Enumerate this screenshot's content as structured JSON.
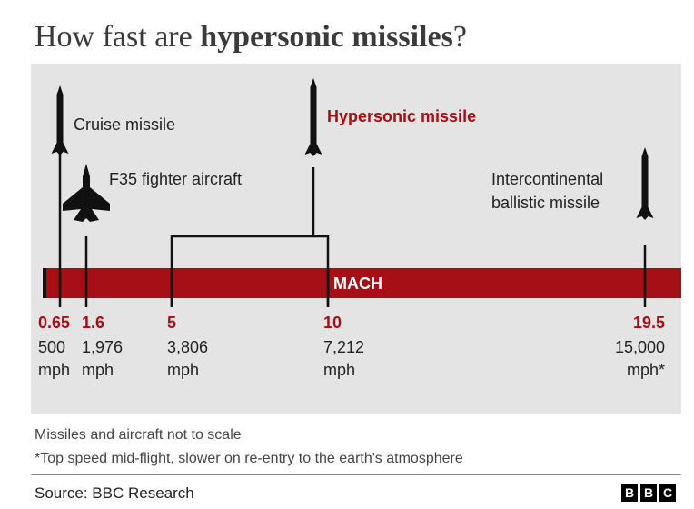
{
  "title": {
    "light": "How fast are ",
    "bold": "hypersonic missiles",
    "end": "?"
  },
  "colors": {
    "accent": "#a50f15",
    "bar": "#a50f15",
    "panel": "#e4e4e4",
    "ink": "#111111"
  },
  "chart_data": {
    "type": "scatter",
    "axis_label": "MACH",
    "points": [
      {
        "mach": 0.65,
        "mach_label": "0.65",
        "speed": "500",
        "unit": "mph",
        "name": "Cruise missile",
        "icon": "cruise-missile-icon"
      },
      {
        "mach": 1.6,
        "mach_label": "1.6",
        "speed": "1,976",
        "unit": "mph",
        "name": "F35 fighter aircraft",
        "icon": "fighter-jet-icon"
      },
      {
        "mach": 5,
        "mach_label": "5",
        "speed": "3,806",
        "unit": "mph",
        "name": "",
        "icon": ""
      },
      {
        "mach": 10,
        "mach_label": "10",
        "speed": "7,212",
        "unit": "mph",
        "name": "",
        "icon": ""
      },
      {
        "mach": 19.5,
        "mach_label": "19.5",
        "speed": "15,000",
        "unit": "mph*",
        "name_lines": [
          "Intercontinental",
          "ballistic missile"
        ],
        "icon": "icbm-icon"
      }
    ],
    "range_label": {
      "text": "Hypersonic missile",
      "from": 5,
      "to": 10,
      "icon": "hypersonic-missile-icon"
    }
  },
  "footnotes": {
    "scale": "Missiles and aircraft not to scale",
    "top_speed": "*Top speed mid-flight, slower on re-entry to the earth's atmosphere"
  },
  "source": "Source: BBC Research",
  "logo": [
    "B",
    "B",
    "C"
  ]
}
